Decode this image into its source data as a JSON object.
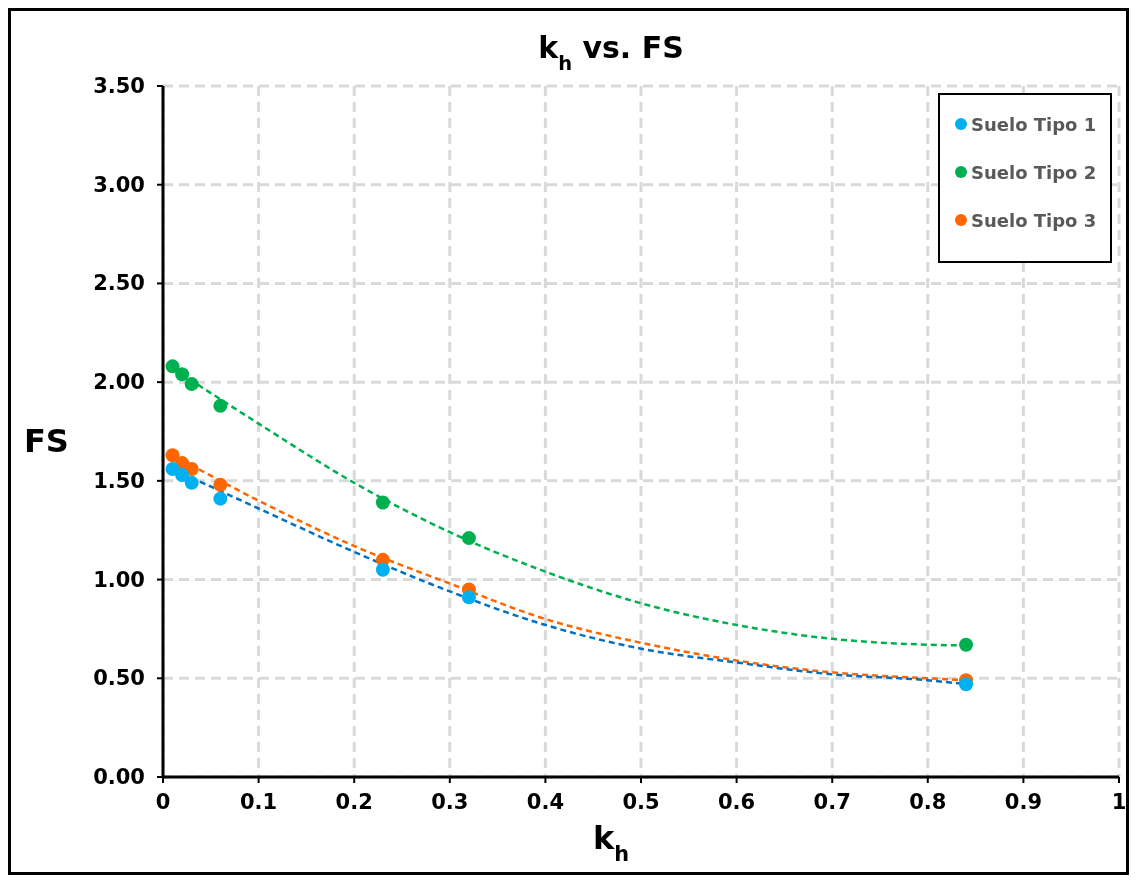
{
  "chart_data": {
    "type": "scatter",
    "title": "k$_{h}$ vs. FS",
    "xlabel": "k$_{h}$",
    "ylabel": "FS",
    "xlim": [
      0,
      1
    ],
    "xticks": [
      0,
      0.1,
      0.2,
      0.3,
      0.4,
      0.5,
      0.6,
      0.7,
      0.8,
      0.9,
      1
    ],
    "ylim": [
      0,
      3.5
    ],
    "yticks": [
      {
        "value": 0,
        "label": "0.00"
      },
      {
        "value": 0.5,
        "label": "0.50"
      },
      {
        "value": 1,
        "label": "1.00"
      },
      {
        "value": 1.5,
        "label": "1.50"
      },
      {
        "value": 2,
        "label": "2.00"
      },
      {
        "value": 2.5,
        "label": "2.50"
      },
      {
        "value": 3,
        "label": "3.00"
      },
      {
        "value": 3.5,
        "label": "3.50"
      }
    ],
    "grid": true,
    "legend": "top right",
    "marker": "circle",
    "x": [
      0.01,
      0.02,
      0.03,
      0.06,
      0.23,
      0.32,
      0.84
    ],
    "series": [
      {
        "name": "Suelo Tipo 1",
        "color": "#00b0f0",
        "values": [
          1.56,
          1.53,
          1.49,
          1.41,
          1.05,
          0.91,
          0.47
        ]
      },
      {
        "name": "Suelo Tipo 2",
        "color": "#00b050",
        "values": [
          2.08,
          2.04,
          1.99,
          1.88,
          1.39,
          1.21,
          0.67
        ]
      },
      {
        "name": "Suelo Tipo 3",
        "color": "#ff6600",
        "values": [
          1.63,
          1.59,
          1.56,
          1.48,
          1.1,
          0.95,
          0.49
        ]
      },
      {
        "type": "line",
        "color": "#0070c0",
        "line_style": "dashed",
        "marker": "none",
        "x": [
          0.01,
          0.1,
          0.2,
          0.3,
          0.4,
          0.5,
          0.6,
          0.7,
          0.8,
          0.84
        ],
        "values": [
          1.56,
          1.36,
          1.14,
          0.94,
          0.77,
          0.65,
          0.58,
          0.52,
          0.49,
          0.47
        ]
      },
      {
        "type": "line",
        "color": "#00b050",
        "line_style": "dashed",
        "marker": "none",
        "x": [
          0.01,
          0.1,
          0.2,
          0.3,
          0.4,
          0.5,
          0.6,
          0.7,
          0.8,
          0.84
        ],
        "values": [
          2.07,
          1.79,
          1.49,
          1.24,
          1.04,
          0.88,
          0.77,
          0.7,
          0.67,
          0.666
        ]
      },
      {
        "type": "line",
        "color": "#ff6600",
        "line_style": "dashed",
        "marker": "none",
        "x": [
          0.01,
          0.1,
          0.2,
          0.3,
          0.4,
          0.5,
          0.6,
          0.7,
          0.8,
          0.84
        ],
        "values": [
          1.63,
          1.4,
          1.17,
          0.98,
          0.8,
          0.68,
          0.59,
          0.53,
          0.5,
          0.49
        ]
      }
    ]
  }
}
